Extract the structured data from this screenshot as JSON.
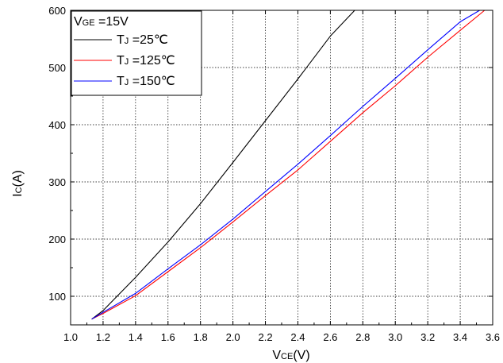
{
  "chart_data": {
    "type": "line",
    "xlabel": {
      "main": "V",
      "sub": "CE",
      "unit": "(V)"
    },
    "ylabel": {
      "main": "I",
      "sub": "C",
      "unit": "(A)"
    },
    "xlim": [
      1.0,
      3.6
    ],
    "ylim": [
      50,
      600
    ],
    "xticks": [
      "1.0",
      "1.2",
      "1.4",
      "1.6",
      "1.8",
      "2.0",
      "2.2",
      "2.4",
      "2.6",
      "2.8",
      "3.0",
      "3.2",
      "3.4",
      "3.6"
    ],
    "yticks": [
      "100",
      "200",
      "300",
      "400",
      "500",
      "600"
    ],
    "grid": true,
    "legend_position": "top-left",
    "legend_title": {
      "main": "V",
      "sub": "GE",
      "rest": " =15V"
    },
    "series": [
      {
        "name": "TJ =25℃",
        "label": {
          "main": "T",
          "sub": "J",
          "rest": " =25℃"
        },
        "color": "#000000",
        "x": [
          1.13,
          1.2,
          1.4,
          1.6,
          1.8,
          2.0,
          2.2,
          2.4,
          2.6,
          2.75
        ],
        "y": [
          60,
          75,
          133,
          195,
          262,
          334,
          407,
          480,
          555,
          600
        ]
      },
      {
        "name": "TJ =125℃",
        "label": {
          "main": "T",
          "sub": "J",
          "rest": " =125℃"
        },
        "color": "#ff0000",
        "x": [
          1.13,
          1.2,
          1.4,
          1.6,
          1.8,
          2.0,
          2.2,
          2.4,
          2.6,
          2.8,
          3.0,
          3.2,
          3.4,
          3.55
        ],
        "y": [
          60,
          70,
          101,
          143,
          185,
          230,
          276,
          321,
          371,
          421,
          468,
          518,
          565,
          600
        ]
      },
      {
        "name": "TJ =150℃",
        "label": {
          "main": "T",
          "sub": "J",
          "rest": " =150℃"
        },
        "color": "#0000ff",
        "x": [
          1.13,
          1.2,
          1.4,
          1.6,
          1.8,
          2.0,
          2.2,
          2.4,
          2.6,
          2.8,
          3.0,
          3.2,
          3.4,
          3.52
        ],
        "y": [
          60,
          72,
          105,
          148,
          190,
          235,
          283,
          331,
          381,
          432,
          481,
          531,
          580,
          600
        ]
      }
    ]
  }
}
